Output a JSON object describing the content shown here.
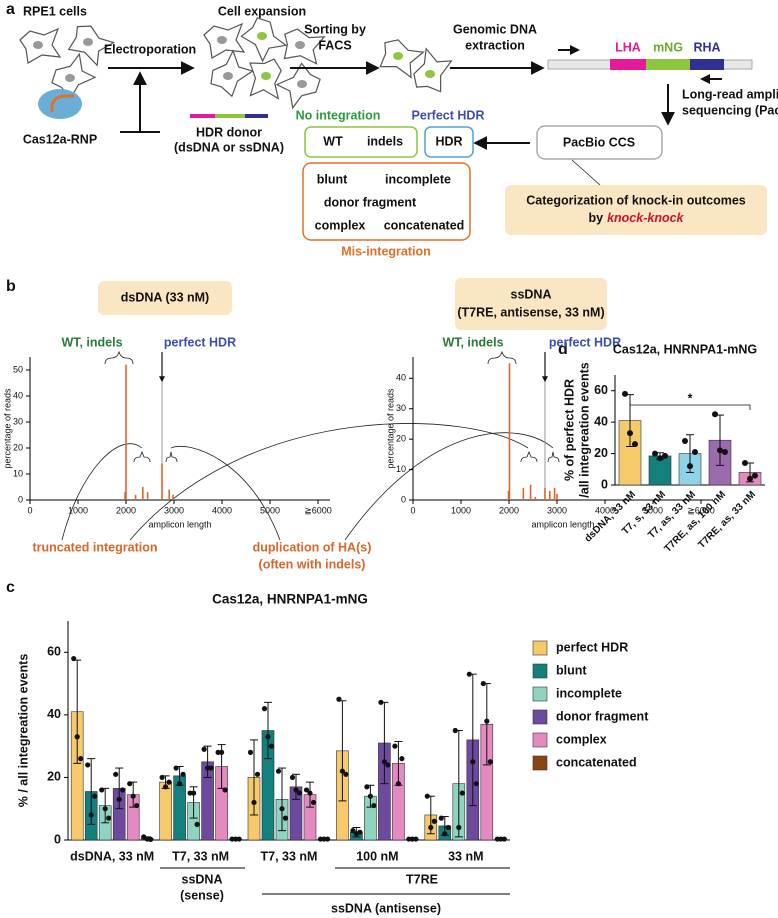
{
  "panel_labels": [
    "a",
    "b",
    "c",
    "d"
  ],
  "panel_a": {
    "rpe1": "RPE1 cells",
    "expansion": "Cell expansion",
    "electroporation": "Electroporation",
    "sorting": [
      "Sorting by",
      "FACS"
    ],
    "extraction": [
      "Genomic DNA",
      "extraction"
    ],
    "lha": "LHA",
    "mng": "mNG",
    "rha": "RHA",
    "sequencing": [
      "Long-read amplicon",
      "sequencing (PacBio)"
    ],
    "rnp": "Cas12a-RNP",
    "donor": [
      "HDR donor",
      "(dsDNA or ssDNA)"
    ],
    "no_integration": "No integration",
    "perfect_hdr": "Perfect HDR",
    "wt": "WT",
    "indels": "indels",
    "hdr": "HDR",
    "ccs": "PacBio CCS",
    "mis": [
      "blunt",
      "incomplete",
      "donor fragment",
      "complex",
      "concatenated"
    ],
    "mis_label": "Mis-integration",
    "categorization": [
      "Categorization of knock-in outcomes",
      "by"
    ],
    "tool": "knock-knock"
  },
  "panel_b_notes": {
    "truncated": "truncated integration",
    "duplication": [
      "duplication of HA(s)",
      "(often with indels)"
    ]
  },
  "chart_data": [
    {
      "type": "spike",
      "title": "dsDNA (33 nM)",
      "x_label": "amplicon length",
      "y_label": "percentage of reads",
      "xlim": [
        0,
        6250
      ],
      "xticks": [
        0,
        1000,
        2000,
        3000,
        4000,
        5000,
        {
          "value": 6000,
          "label": "≧6000"
        }
      ],
      "ylim": [
        0,
        55
      ],
      "yticks": [
        0,
        10,
        20,
        30,
        40,
        50
      ],
      "x": [
        1980,
        2000,
        2200,
        2350,
        2450,
        2750,
        2900,
        2980
      ],
      "values": [
        3,
        52,
        2,
        5,
        3,
        14,
        4,
        2
      ],
      "color": "#d9662b",
      "reference_x": 2750,
      "annotations": {
        "wt": "WT, indels",
        "hdr": "perfect HDR"
      }
    },
    {
      "type": "spike",
      "title": [
        "ssDNA",
        "(T7RE, antisense, 33 nM)"
      ],
      "x_label": "amplicon length",
      "y_label": "percentage of reads",
      "xlim": [
        0,
        6250
      ],
      "xticks": [
        0,
        1000,
        2000,
        3000,
        4000,
        5000,
        {
          "value": 6000,
          "label": "≧6000"
        }
      ],
      "ylim": [
        0,
        47
      ],
      "yticks": [
        0,
        10,
        20,
        30,
        40
      ],
      "x": [
        1990,
        2010,
        2300,
        2450,
        2550,
        2750,
        2850,
        2950,
        3000
      ],
      "values": [
        3,
        45,
        4,
        5,
        1,
        4,
        3,
        4,
        2
      ],
      "color": "#d9662b",
      "reference_x": 2750,
      "annotations": {
        "wt": "WT, indels",
        "hdr": "perfect HDR"
      }
    },
    {
      "type": "bar",
      "title": "Cas12a, HNRNPA1-mNG",
      "y_label": [
        "% of perfect HDR",
        "/all integreation events"
      ],
      "categories": [
        "dsDNA, 33 nM",
        "T7, s, 33 nM",
        "T7, as, 33 nM",
        "T7RE, as, 100 nM",
        "T7RE, as, 33 nM"
      ],
      "values": [
        41,
        18.5,
        20,
        28.5,
        8
      ],
      "errors": [
        16.5,
        2,
        12,
        16,
        6
      ],
      "points": [
        [
          58,
          33,
          26
        ],
        [
          20,
          17,
          18.5
        ],
        [
          28,
          12,
          21
        ],
        [
          45,
          22,
          21
        ],
        [
          14,
          4,
          6
        ]
      ],
      "colors": [
        "#f6c96b",
        "#13807d",
        "#8fd3e6",
        "#9b6bb0",
        "#e58ac0"
      ],
      "ylim": [
        0,
        70
      ],
      "yticks": [
        0,
        20,
        40,
        60
      ],
      "significance": "*"
    },
    {
      "type": "grouped_bar",
      "title": "Cas12a, HNRNPA1-mNG",
      "y_label": "% / all integreation events",
      "categories": [
        "dsDNA, 33 nM",
        "T7, 33 nM",
        "T7, 33 nM",
        "100 nM",
        "33 nM"
      ],
      "ylim": [
        0,
        70
      ],
      "yticks": [
        0,
        20,
        40,
        60
      ],
      "legend": "right",
      "group_labels": {
        "sense": [
          "ssDNA",
          "(sense)"
        ],
        "t7re": "T7RE",
        "antisense": "ssDNA (antisense)"
      },
      "series": [
        {
          "name": "perfect HDR",
          "color": "#f6c96b",
          "values": [
            41,
            18.5,
            20,
            28.5,
            8
          ],
          "errors": [
            16.5,
            2,
            12,
            16,
            6
          ],
          "points": [
            [
              58,
              33,
              26
            ],
            [
              20,
              17,
              18.5
            ],
            [
              28,
              12,
              21
            ],
            [
              45,
              22,
              21
            ],
            [
              14,
              4,
              6
            ]
          ]
        },
        {
          "name": "blunt",
          "color": "#13807d",
          "values": [
            15.5,
            20.5,
            35,
            2.5,
            4.5
          ],
          "errors": [
            10.5,
            3,
            9,
            1.5,
            3
          ],
          "points": [
            [
              24,
              8,
              14
            ],
            [
              23,
              18,
              21
            ],
            [
              42,
              33,
              30
            ],
            [
              3,
              2,
              2.5
            ],
            [
              7,
              2,
              4
            ]
          ]
        },
        {
          "name": "incomplete",
          "color": "#8fd3c1",
          "values": [
            11,
            12,
            13,
            14,
            18
          ],
          "errors": [
            5.5,
            5,
            10,
            3.5,
            17
          ],
          "points": [
            [
              16,
              10,
              7
            ],
            [
              15,
              15,
              5
            ],
            [
              22,
              10,
              7
            ],
            [
              17,
              14,
              11
            ],
            [
              35,
              4,
              15
            ]
          ]
        },
        {
          "name": "donor fragment",
          "color": "#6e4a9e",
          "values": [
            16.5,
            25,
            17,
            31,
            32
          ],
          "errors": [
            6.5,
            5,
            4,
            13,
            21
          ],
          "points": [
            [
              21,
              13,
              16
            ],
            [
              29,
              23,
              23
            ],
            [
              20,
              16,
              15
            ],
            [
              44,
              25,
              24
            ],
            [
              53,
              25,
              18
            ]
          ]
        },
        {
          "name": "complex",
          "color": "#e58ac0",
          "values": [
            14.5,
            23.5,
            14.5,
            24.5,
            37
          ],
          "errors": [
            4,
            7,
            4,
            7,
            13
          ],
          "points": [
            [
              18,
              14,
              11
            ],
            [
              28,
              28,
              16
            ],
            [
              16,
              15,
              12
            ],
            [
              30,
              18,
              26
            ],
            [
              50,
              38,
              25
            ]
          ]
        },
        {
          "name": "concatenated",
          "color": "#8b4513",
          "values": [
            0.5,
            0.3,
            0.3,
            0.3,
            0.3
          ],
          "errors": [
            0.5,
            0.2,
            0.2,
            0.2,
            0.2
          ],
          "points": [
            [
              1,
              0.3,
              0.2
            ],
            [
              0.3,
              0.3,
              0.3
            ],
            [
              0.3,
              0.3,
              0.3
            ],
            [
              0.3,
              0.3,
              0.3
            ],
            [
              0.3,
              0.3,
              0.3
            ]
          ]
        }
      ]
    }
  ]
}
